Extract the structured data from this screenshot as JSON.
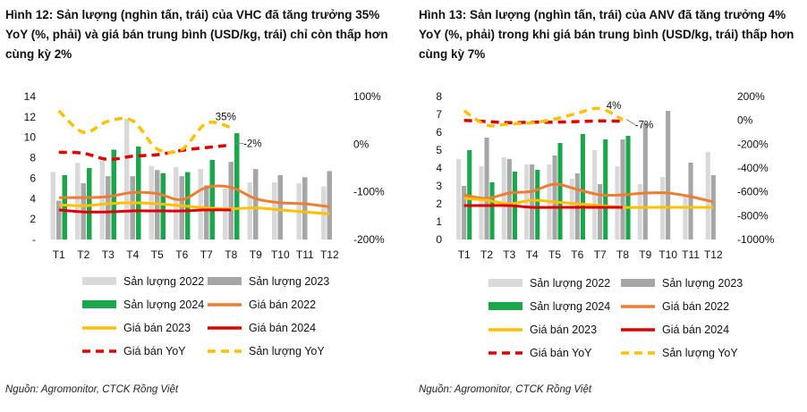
{
  "charts": [
    {
      "id": "left",
      "title": "Hình 12: Sản lượng (nghìn tấn, trái) của VHC đã tăng trưởng 35% YoY (%, phải) và giá bán trung bình (USD/kg, trái) chỉ còn thấp hơn cùng kỳ 2%",
      "source": "Nguồn: Agromonitor, CTCK Rồng Việt",
      "chart_data": {
        "type": "bar",
        "categories": [
          "T1",
          "T2",
          "T3",
          "T4",
          "T5",
          "T6",
          "T7",
          "T8",
          "T9",
          "T10",
          "T11",
          "T12"
        ],
        "left_axis": {
          "min": 0,
          "max": 14,
          "ticks": [
            14,
            12,
            10,
            8,
            6,
            4,
            2
          ],
          "bottom_label": "-"
        },
        "right_axis": {
          "min": -200,
          "max": 100,
          "ticks": [
            "100%",
            "0%",
            "-100%",
            "-200%"
          ]
        },
        "bars": [
          {
            "name": "Sản lượng 2022",
            "color": "#d9d9d9",
            "values": [
              6.6,
              7.5,
              7.7,
              11.8,
              7.2,
              7.1,
              6.9,
              5.0,
              5.6,
              5.6,
              5.5,
              5.2
            ]
          },
          {
            "name": "Sản lượng 2023",
            "color": "#a6a6a6",
            "values": [
              3.8,
              5.5,
              6.2,
              6.2,
              6.8,
              6.2,
              5.3,
              7.6,
              6.9,
              6.3,
              6.1,
              6.7
            ]
          },
          {
            "name": "Sản lượng 2024",
            "color": "#1aa64b",
            "values": [
              6.3,
              7.0,
              8.8,
              9.1,
              6.5,
              6.6,
              7.8,
              10.4
            ]
          }
        ],
        "lines": [
          {
            "name": "Giá bán 2022",
            "color": "#ed7d31",
            "style": "solid",
            "axis": "left",
            "values": [
              4.1,
              4.1,
              4.2,
              4.6,
              4.5,
              3.9,
              5.1,
              5.1,
              4.0,
              3.6,
              3.5,
              3.2
            ]
          },
          {
            "name": "Giá bán 2023",
            "color": "#ffc000",
            "style": "solid",
            "axis": "left",
            "values": [
              3.4,
              3.3,
              3.5,
              3.6,
              3.5,
              3.3,
              3.1,
              3.0,
              3.1,
              2.9,
              2.7,
              2.5
            ]
          },
          {
            "name": "Giá bán 2024",
            "color": "#e00000",
            "style": "solid",
            "axis": "left",
            "values": [
              2.9,
              2.7,
              2.7,
              2.8,
              2.8,
              2.8,
              2.9,
              2.9
            ]
          },
          {
            "name": "Giá bán YoY",
            "color": "#e00000",
            "style": "dashed",
            "axis": "right",
            "values": [
              -17,
              -19,
              -32,
              -25,
              -22,
              -13,
              -7,
              -2
            ]
          },
          {
            "name": "Sản lượng YoY",
            "color": "#ffc000",
            "style": "dashed",
            "axis": "right",
            "values": [
              70,
              25,
              48,
              49,
              -10,
              -11,
              44,
              35
            ]
          }
        ],
        "annotations": [
          "35%",
          "-2%"
        ],
        "legend_rows": [
          [
            "Sản lượng 2022",
            "Sản lượng 2023"
          ],
          [
            "Sản lượng 2024",
            "Giá bán 2022"
          ],
          [
            "Giá bán 2023",
            "Giá bán 2024"
          ],
          [
            "Giá bán YoY",
            "Sản lượng YoY"
          ]
        ]
      }
    },
    {
      "id": "right",
      "title": "Hình 13: Sản lượng (nghìn tấn, trái) của ANV đã tăng trưởng 4% YoY (%, phải) trong khi giá bán trung bình (USD/kg, trái) thấp hơn cùng kỳ 7%",
      "source": "Nguồn: Agromonitor, CTCK Rồng Việt",
      "chart_data": {
        "type": "bar",
        "categories": [
          "T1",
          "T2",
          "T3",
          "T4",
          "T5",
          "T6",
          "T7",
          "T8",
          "T9",
          "T10",
          "T11",
          "T12"
        ],
        "left_axis": {
          "min": 0,
          "max": 8,
          "ticks": [
            8,
            7,
            6,
            5,
            4,
            3,
            2,
            1,
            0
          ],
          "bottom_label": ""
        },
        "right_axis": {
          "min": -1000,
          "max": 200,
          "ticks": [
            "200%",
            "0%",
            "-200%",
            "-400%",
            "-600%",
            "-800%",
            "-1000%"
          ]
        },
        "bars": [
          {
            "name": "Sản lượng 2022",
            "color": "#d9d9d9",
            "values": [
              4.5,
              4.1,
              4.6,
              4.2,
              4.2,
              3.4,
              5.0,
              4.1,
              3.1,
              3.5,
              2.5,
              4.9
            ]
          },
          {
            "name": "Sản lượng 2023",
            "color": "#a6a6a6",
            "values": [
              3.0,
              5.7,
              4.5,
              4.2,
              4.7,
              3.7,
              3.1,
              5.6,
              6.5,
              7.2,
              4.3,
              3.6
            ]
          },
          {
            "name": "Sản lượng 2024",
            "color": "#1aa64b",
            "values": [
              5.0,
              3.2,
              3.8,
              3.9,
              5.4,
              5.9,
              5.6,
              5.8
            ]
          }
        ],
        "lines": [
          {
            "name": "Giá bán 2022",
            "color": "#ed7d31",
            "style": "solid",
            "axis": "left",
            "values": [
              2.5,
              2.3,
              2.6,
              2.7,
              3.1,
              2.8,
              2.5,
              2.5,
              2.6,
              2.6,
              2.4,
              2.1
            ]
          },
          {
            "name": "Giá bán 2023",
            "color": "#ffc000",
            "style": "solid",
            "axis": "left",
            "values": [
              2.3,
              2.2,
              2.0,
              2.2,
              2.1,
              2.0,
              1.9,
              1.8,
              1.8,
              1.8,
              1.8,
              1.8
            ]
          },
          {
            "name": "Giá bán 2024",
            "color": "#e00000",
            "style": "solid",
            "axis": "left",
            "values": [
              1.9,
              1.9,
              1.9,
              1.8,
              1.8,
              1.8,
              1.8,
              1.8
            ]
          },
          {
            "name": "Giá bán YoY",
            "color": "#e00000",
            "style": "dashed",
            "axis": "right",
            "values": [
              0,
              -10,
              -20,
              -15,
              -15,
              -10,
              -5,
              -7
            ]
          },
          {
            "name": "Sản lượng YoY",
            "color": "#ffc000",
            "style": "dashed",
            "axis": "right",
            "values": [
              80,
              -40,
              -30,
              -20,
              10,
              60,
              100,
              4
            ]
          }
        ],
        "annotations": [
          "4%",
          "-7%"
        ],
        "legend_rows": [
          [
            "Sản lượng 2022",
            "Sản lượng 2023"
          ],
          [
            "Sản lượng 2024",
            "Giá bán 2022"
          ],
          [
            "Giá bán 2023",
            "Giá bán 2024"
          ],
          [
            "Giá bán YoY",
            "Sản lượng YoY"
          ]
        ]
      }
    }
  ]
}
